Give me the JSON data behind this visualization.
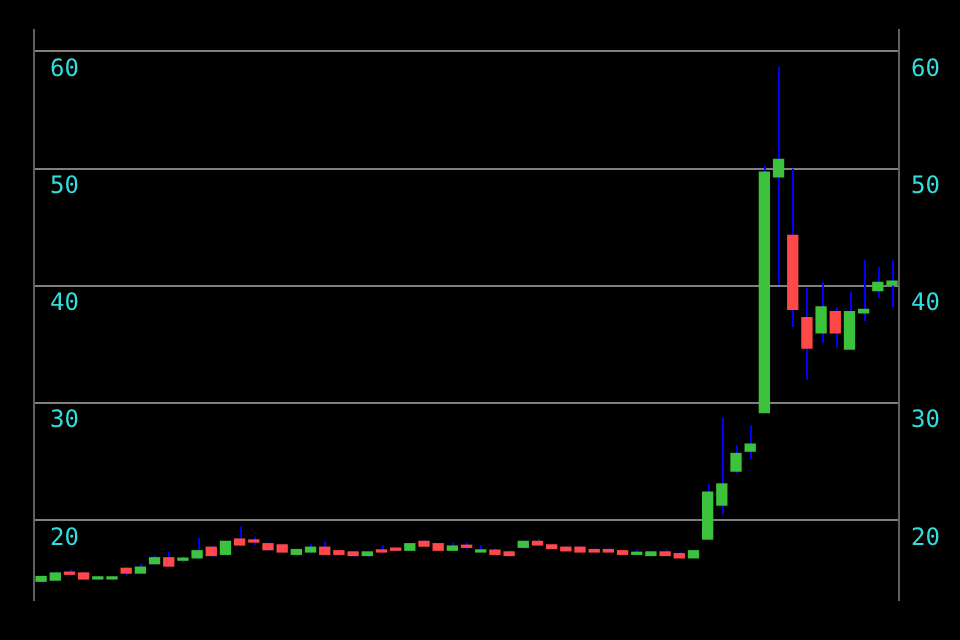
{
  "chart_data": {
    "type": "candlestick",
    "categories": [
      null,
      null,
      null,
      null,
      null,
      null,
      null,
      null,
      null,
      null,
      null,
      null,
      null,
      null,
      null,
      null,
      null,
      null,
      null,
      null,
      null,
      null,
      null,
      null,
      null,
      null,
      null,
      null,
      null,
      null,
      null,
      null,
      null,
      null,
      null,
      null,
      null,
      null,
      null,
      null,
      null,
      null,
      null,
      null,
      null,
      null,
      null,
      null,
      null,
      null,
      null,
      null,
      null,
      null,
      null,
      null,
      null,
      null,
      null,
      null,
      null
    ],
    "ohlc": [
      [
        14.8,
        15.3,
        14.7,
        15.2
      ],
      [
        14.9,
        15.6,
        14.8,
        15.5
      ],
      [
        15.5,
        15.8,
        15.3,
        15.4
      ],
      [
        15.5,
        15.6,
        14.9,
        15.0
      ],
      [
        15.0,
        15.2,
        14.9,
        15.1
      ],
      [
        15.0,
        15.2,
        14.9,
        15.1
      ],
      [
        15.9,
        16.0,
        15.3,
        15.5
      ],
      [
        15.5,
        16.3,
        15.4,
        16.0
      ],
      [
        16.3,
        17.0,
        16.2,
        16.8
      ],
      [
        16.8,
        17.3,
        16.0,
        16.1
      ],
      [
        16.6,
        16.9,
        16.4,
        16.7
      ],
      [
        16.8,
        18.5,
        16.7,
        17.4
      ],
      [
        17.7,
        17.8,
        16.9,
        17.0
      ],
      [
        17.1,
        18.2,
        17.0,
        18.2
      ],
      [
        18.4,
        19.5,
        17.8,
        17.9
      ],
      [
        18.25,
        18.6,
        17.9,
        18.15
      ],
      [
        18.0,
        18.1,
        17.4,
        17.5
      ],
      [
        17.9,
        18.0,
        17.2,
        17.3
      ],
      [
        17.1,
        17.5,
        17.0,
        17.5
      ],
      [
        17.3,
        18.0,
        17.2,
        17.7
      ],
      [
        17.7,
        18.2,
        17.0,
        17.1
      ],
      [
        17.4,
        17.5,
        17.0,
        17.1
      ],
      [
        17.3,
        17.4,
        16.9,
        17.0
      ],
      [
        17.0,
        17.3,
        16.9,
        17.3
      ],
      [
        17.45,
        17.9,
        17.2,
        17.3
      ],
      [
        17.6,
        17.7,
        17.4,
        17.45
      ],
      [
        17.45,
        18.0,
        17.4,
        18.0
      ],
      [
        18.2,
        18.3,
        17.8,
        17.8
      ],
      [
        18.0,
        18.0,
        17.4,
        17.45
      ],
      [
        17.45,
        18.1,
        17.4,
        17.8
      ],
      [
        17.8,
        18.1,
        17.5,
        17.7
      ],
      [
        17.3,
        17.9,
        17.3,
        17.45
      ],
      [
        17.45,
        17.6,
        17.1,
        17.1
      ],
      [
        17.3,
        17.4,
        17.0,
        17.0
      ],
      [
        17.7,
        18.3,
        17.6,
        18.2
      ],
      [
        18.2,
        18.4,
        17.9,
        17.9
      ],
      [
        17.9,
        18.0,
        17.6,
        17.6
      ],
      [
        17.7,
        17.8,
        17.4,
        17.4
      ],
      [
        17.7,
        17.8,
        17.3,
        17.3
      ],
      [
        17.5,
        17.6,
        17.3,
        17.3
      ],
      [
        17.5,
        17.6,
        17.3,
        17.3
      ],
      [
        17.4,
        17.5,
        17.1,
        17.1
      ],
      [
        17.1,
        17.5,
        17.1,
        17.25
      ],
      [
        17.0,
        17.3,
        17.0,
        17.3
      ],
      [
        17.3,
        17.5,
        17.0,
        17.0
      ],
      [
        17.15,
        17.3,
        16.8,
        16.8
      ],
      [
        16.8,
        17.4,
        16.8,
        17.4
      ],
      [
        18.4,
        23.1,
        18.4,
        22.4
      ],
      [
        21.3,
        28.8,
        20.5,
        23.1
      ],
      [
        24.2,
        26.4,
        24.0,
        25.7
      ],
      [
        25.9,
        28.1,
        25.2,
        26.5
      ],
      [
        29.2,
        50.2,
        29.2,
        49.7
      ],
      [
        49.3,
        58.7,
        40.1,
        50.8
      ],
      [
        44.3,
        50.0,
        36.5,
        38.0
      ],
      [
        37.3,
        39.8,
        32.0,
        34.7
      ],
      [
        36.0,
        40.3,
        35.1,
        38.2
      ],
      [
        37.8,
        38.2,
        34.7,
        36.0
      ],
      [
        34.6,
        39.5,
        34.6,
        37.8
      ],
      [
        37.7,
        42.2,
        37.0,
        38.0
      ],
      [
        39.6,
        41.6,
        39.0,
        40.3
      ],
      [
        40.1,
        42.2,
        38.2,
        40.4
      ]
    ],
    "colors": [
      "#3cc23c",
      "#3cc23c",
      "#ff4848",
      "#ff4848",
      "#3cc23c",
      "#3cc23c",
      "#ff4848",
      "#3cc23c",
      "#3cc23c",
      "#ff4848",
      "#3cc23c",
      "#3cc23c",
      "#ff4848",
      "#3cc23c",
      "#ff4848",
      "#ff4848",
      "#ff4848",
      "#ff4848",
      "#3cc23c",
      "#3cc23c",
      "#ff4848",
      "#ff4848",
      "#ff4848",
      "#3cc23c",
      "#ff4848",
      "#ff4848",
      "#3cc23c",
      "#ff4848",
      "#ff4848",
      "#3cc23c",
      "#ff4848",
      "#3cc23c",
      "#ff4848",
      "#ff4848",
      "#3cc23c",
      "#ff4848",
      "#ff4848",
      "#ff4848",
      "#ff4848",
      "#ff4848",
      "#ff4848",
      "#ff4848",
      "#3cc23c",
      "#3cc23c",
      "#ff4848",
      "#ff4848",
      "#3cc23c",
      "#3cc23c",
      "#3cc23c",
      "#3cc23c",
      "#3cc23c",
      "#3cc23c",
      "#3cc23c",
      "#ff4848",
      "#ff4848",
      "#3cc23c",
      "#ff4848",
      "#3cc23c",
      "#3cc23c",
      "#3cc23c",
      "#3cc23c"
    ],
    "ylim": [
      13.2,
      61.8
    ],
    "yticks": [
      20,
      30,
      40,
      50,
      60
    ],
    "y2lim": [
      13.2,
      61.8
    ],
    "y2ticks": [
      20,
      30,
      40,
      50,
      60
    ],
    "grid": "y"
  }
}
